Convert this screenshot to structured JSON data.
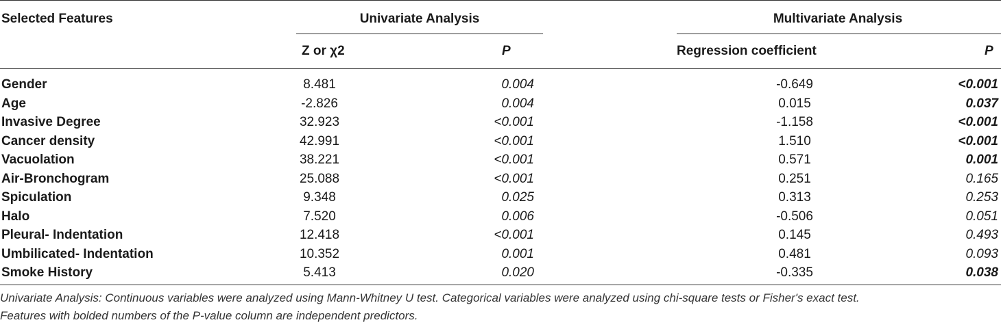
{
  "header": {
    "selected_features": "Selected Features",
    "univariate": "Univariate Analysis",
    "multivariate": "Multivariate Analysis",
    "z_or_chi2": "Z or χ2",
    "p1": "P",
    "regression_coefficient": "Regression coefficient",
    "p2": "P"
  },
  "rows": [
    {
      "feature": "Gender",
      "z": "8.481",
      "p1": "0.004",
      "coef": "-0.649",
      "p2": "<0.001",
      "p2_bold": true
    },
    {
      "feature": "Age",
      "z": "-2.826",
      "p1": "0.004",
      "coef": "0.015",
      "p2": "0.037",
      "p2_bold": true
    },
    {
      "feature": "Invasive Degree",
      "z": "32.923",
      "p1": "<0.001",
      "coef": "-1.158",
      "p2": "<0.001",
      "p2_bold": true
    },
    {
      "feature": "Cancer density",
      "z": "42.991",
      "p1": "<0.001",
      "coef": "1.510",
      "p2": "<0.001",
      "p2_bold": true
    },
    {
      "feature": "Vacuolation",
      "z": "38.221",
      "p1": "<0.001",
      "coef": "0.571",
      "p2": "0.001",
      "p2_bold": true
    },
    {
      "feature": "Air-Bronchogram",
      "z": "25.088",
      "p1": "<0.001",
      "coef": "0.251",
      "p2": "0.165",
      "p2_bold": false
    },
    {
      "feature": "Spiculation",
      "z": "9.348",
      "p1": "0.025",
      "coef": "0.313",
      "p2": "0.253",
      "p2_bold": false
    },
    {
      "feature": "Halo",
      "z": "7.520",
      "p1": "0.006",
      "coef": "-0.506",
      "p2": "0.051",
      "p2_bold": false
    },
    {
      "feature": "Pleural- Indentation",
      "z": "12.418",
      "p1": "<0.001",
      "coef": "0.145",
      "p2": "0.493",
      "p2_bold": false
    },
    {
      "feature": "Umbilicated- Indentation",
      "z": "10.352",
      "p1": "0.001",
      "coef": "0.481",
      "p2": "0.093",
      "p2_bold": false
    },
    {
      "feature": "Smoke History",
      "z": "5.413",
      "p1": "0.020",
      "coef": "-0.335",
      "p2": "0.038",
      "p2_bold": true
    }
  ],
  "footnotes": [
    "Univariate Analysis: Continuous variables were analyzed using Mann-Whitney U test. Categorical variables were analyzed using chi-square tests or Fisher's exact test.",
    "Features with bolded numbers of the P-value column are independent predictors."
  ]
}
